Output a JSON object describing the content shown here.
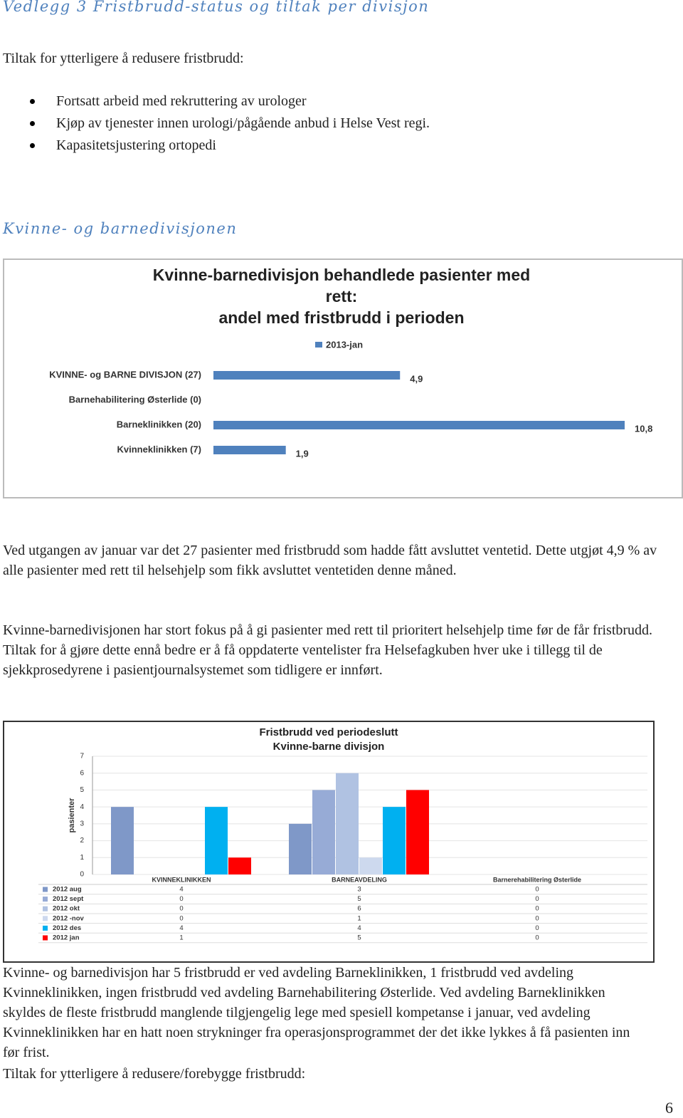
{
  "header": {
    "title": "Vedlegg 3 Fristbrudd-status og tiltak per divisjon"
  },
  "intro": {
    "text": "Tiltak for ytterligere å redusere fristbrudd:",
    "bullets": [
      "Fortsatt arbeid med rekruttering av urologer",
      "Kjøp av tjenester innen urologi/pågående anbud i Helse Vest regi.",
      "Kapasitetsjustering ortopedi"
    ]
  },
  "section_heading": "Kvinne- og barnedivisjonen",
  "chart_data": [
    {
      "type": "hbar",
      "title": [
        "Kvinne-barnedivisjon behandlede pasienter med",
        "rett:",
        "andel med fristbrudd i perioden"
      ],
      "categories": [
        "KVINNE- og BARNE DIVISJON (27)",
        "Barnehabilitering Østerlide (0)",
        "Barneklinikken (20)",
        "Kvinneklinikken (7)"
      ],
      "series": [
        {
          "name": "2013-jan",
          "color": "#4f81bd",
          "values": [
            4.9,
            0,
            10.8,
            1.9
          ],
          "value_labels": [
            "4,9",
            null,
            "10,8",
            "1,9"
          ]
        }
      ],
      "legend": "top"
    },
    {
      "type": "bar",
      "title": [
        "Fristbrudd ved periodeslutt",
        "Kvinne-barne divisjon"
      ],
      "y_label": "pasienter",
      "categories": [
        "KVINNEKLINIKKEN",
        "BARNEAVDELING",
        "Barnerehabilitering Østerlide"
      ],
      "series": [
        {
          "name": "2012 aug",
          "color": "#7f98c8",
          "values": [
            4,
            3,
            0
          ]
        },
        {
          "name": "2012 sept",
          "color": "#97abd6",
          "values": [
            0,
            5,
            0
          ]
        },
        {
          "name": "2012 okt",
          "color": "#b0c2e2",
          "values": [
            0,
            6,
            0
          ]
        },
        {
          "name": "2012 -nov",
          "color": "#cdd9ee",
          "values": [
            0,
            1,
            0
          ]
        },
        {
          "name": "2012 des",
          "color": "#00b0f0",
          "values": [
            4,
            4,
            0
          ]
        },
        {
          "name": "2012 jan",
          "color": "#ff0000",
          "values": [
            1,
            5,
            0
          ]
        }
      ],
      "ylim": [
        0,
        7
      ],
      "yticks": [
        0,
        1,
        2,
        3,
        4,
        5,
        6,
        7
      ],
      "grid": true
    }
  ],
  "paragraphs": [
    "Ved utgangen av januar var det 27 pasienter med fristbrudd som hadde fått avsluttet ventetid. Dette utgjøt 4,9 % av alle pasienter med rett til helsehjelp som fikk avsluttet ventetiden denne måned.",
    "Kvinne-barnedivisjonen har stort fokus på å gi pasienter med rett til prioritert helsehjelp time før de får fristbrudd. Tiltak for å gjøre dette ennå bedre er å få oppdaterte ventelister fra Helsefagkuben hver uke i tillegg til de sjekkprosedyrene i pasientjournalsystemet som tidligere er innført.",
    "Kvinne- og barnedivisjon har 5 fristbrudd er ved avdeling Barneklinikken, 1 fristbrudd ved avdeling Kvinneklinikken, ingen fristbrudd ved avdeling Barnehabilitering Østerlide. Ved avdeling Barneklinikken skyldes de fleste fristbrudd manglende tilgjengelig lege med spesiell kompetanse i januar, ved avdeling Kvinneklinikken har en hatt noen strykninger fra operasjonsprogrammet der det ikke lykkes å få pasienten inn før frist.",
    "Tiltak for ytterligere å redusere/forebygge fristbrudd:"
  ],
  "page_number": 6
}
